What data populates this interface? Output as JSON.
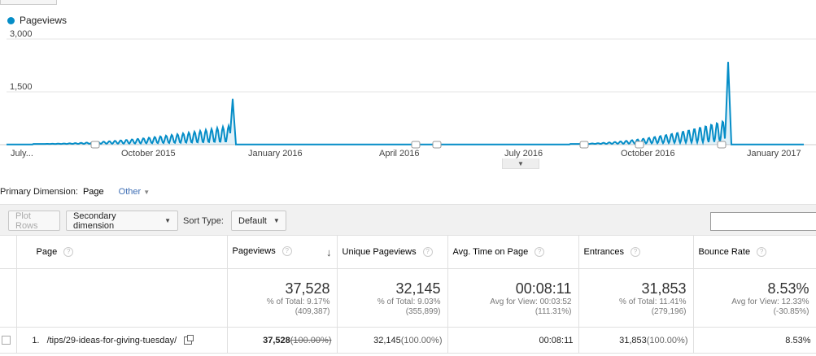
{
  "legend": {
    "label": "Pageviews",
    "color": "#058dc7"
  },
  "chart_data": {
    "type": "area",
    "title": "",
    "series": [
      {
        "name": "Pageviews",
        "color": "#058dc7"
      }
    ],
    "y_ticks": [
      "3,000",
      "1,500"
    ],
    "ylim": [
      0,
      3000
    ],
    "x_tick_labels": [
      "July...",
      "October 2015",
      "January 2016",
      "April 2016",
      "July 2016",
      "October 2016",
      "January 2017"
    ],
    "peaks": [
      {
        "near": "December 2015",
        "value": 1300
      },
      {
        "near": "December 2016",
        "value": 2350
      }
    ],
    "grid": true
  },
  "primary_dimension": {
    "label": "Primary Dimension:",
    "current": "Page",
    "other": "Other"
  },
  "toolbar": {
    "plot_rows": "Plot Rows",
    "secondary_dimension": "Secondary dimension",
    "sort_type_label": "Sort Type:",
    "sort_type_value": "Default"
  },
  "table": {
    "headers": {
      "page": "Page",
      "pageviews": "Pageviews",
      "unique_pageviews": "Unique Pageviews",
      "avg_time": "Avg. Time on Page",
      "entrances": "Entrances",
      "bounce_rate": "Bounce Rate"
    },
    "totals": {
      "pageviews": {
        "value": "37,528",
        "line1": "% of Total: 9.17%",
        "line2": "(409,387)"
      },
      "unique_pageviews": {
        "value": "32,145",
        "line1": "% of Total: 9.03%",
        "line2": "(355,899)"
      },
      "avg_time": {
        "value": "00:08:11",
        "line1": "Avg for View: 00:03:52",
        "line2": "(111.31%)"
      },
      "entrances": {
        "value": "31,853",
        "line1": "% of Total: 11.41%",
        "line2": "(279,196)"
      },
      "bounce_rate": {
        "value": "8.53%",
        "line1": "Avg for View: 12.33%",
        "line2": "(-30.85%)"
      }
    },
    "rows": [
      {
        "index": "1.",
        "page": "/tips/29-ideas-for-giving-tuesday/",
        "pageviews": "37,528",
        "pageviews_pct": "(100.00%)",
        "unique_pageviews": "32,145",
        "unique_pageviews_pct": "(100.00%)",
        "avg_time": "00:08:11",
        "entrances": "31,853",
        "entrances_pct": "(100.00%)",
        "bounce_rate": "8.53%"
      }
    ]
  }
}
